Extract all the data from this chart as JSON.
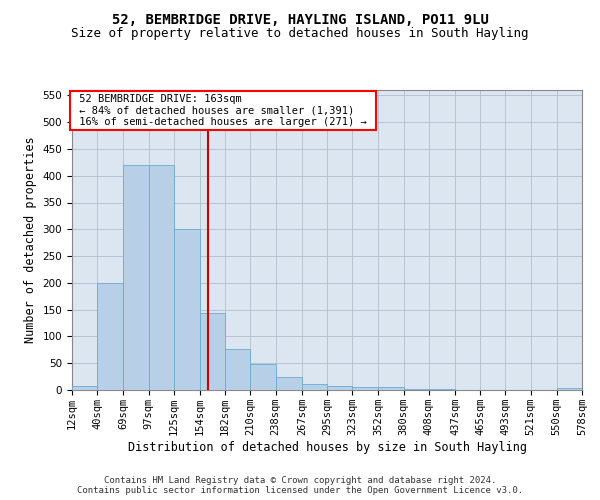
{
  "title": "52, BEMBRIDGE DRIVE, HAYLING ISLAND, PO11 9LU",
  "subtitle": "Size of property relative to detached houses in South Hayling",
  "xlabel": "Distribution of detached houses by size in South Hayling",
  "ylabel": "Number of detached properties",
  "footer_line1": "Contains HM Land Registry data © Crown copyright and database right 2024.",
  "footer_line2": "Contains public sector information licensed under the Open Government Licence v3.0.",
  "annotation_line1": "52 BEMBRIDGE DRIVE: 163sqm",
  "annotation_line2": "← 84% of detached houses are smaller (1,391)",
  "annotation_line3": "16% of semi-detached houses are larger (271) →",
  "property_size": 163,
  "bin_edges": [
    12,
    40,
    69,
    97,
    125,
    154,
    182,
    210,
    238,
    267,
    295,
    323,
    352,
    380,
    408,
    437,
    465,
    493,
    521,
    550,
    578
  ],
  "bar_heights": [
    8,
    200,
    420,
    420,
    300,
    143,
    77,
    48,
    25,
    12,
    8,
    5,
    5,
    1,
    1,
    0,
    0,
    0,
    0,
    3
  ],
  "bar_color": "#b8cfe8",
  "bar_edgecolor": "#6aaad4",
  "vline_color": "#cc0000",
  "vline_x": 163,
  "ylim": [
    0,
    560
  ],
  "yticks": [
    0,
    50,
    100,
    150,
    200,
    250,
    300,
    350,
    400,
    450,
    500,
    550
  ],
  "plot_bg_color": "#dce6f0",
  "fig_bg_color": "#ffffff",
  "grid_color": "#b0bece",
  "title_fontsize": 10,
  "subtitle_fontsize": 9,
  "xlabel_fontsize": 8.5,
  "ylabel_fontsize": 8.5,
  "tick_fontsize": 7.5,
  "annotation_fontsize": 7.5,
  "footer_fontsize": 6.5
}
